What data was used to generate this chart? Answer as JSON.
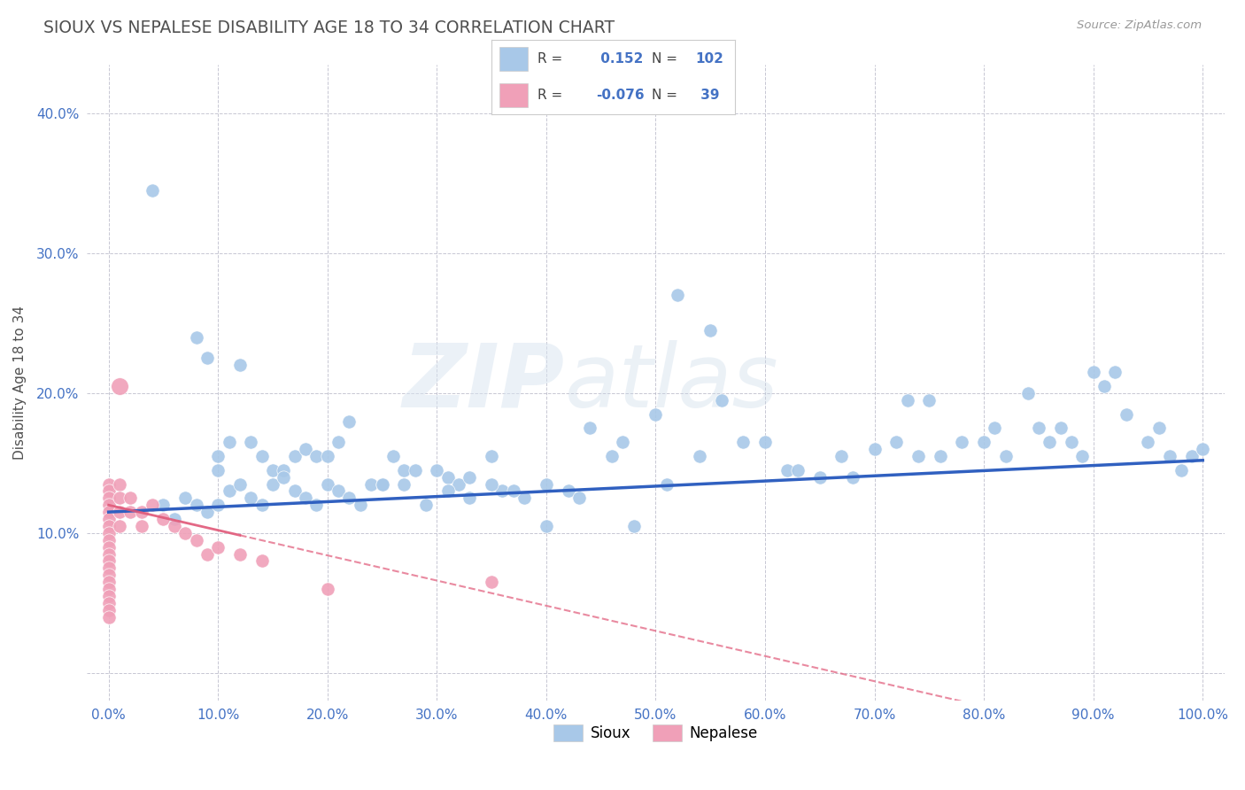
{
  "title": "SIOUX VS NEPALESE DISABILITY AGE 18 TO 34 CORRELATION CHART",
  "source": "Source: ZipAtlas.com",
  "ylabel": "Disability Age 18 to 34",
  "xlim": [
    -0.02,
    1.02
  ],
  "ylim": [
    -0.02,
    0.435
  ],
  "xticks": [
    0.0,
    0.1,
    0.2,
    0.3,
    0.4,
    0.5,
    0.6,
    0.7,
    0.8,
    0.9,
    1.0
  ],
  "xticklabels": [
    "0.0%",
    "10.0%",
    "20.0%",
    "30.0%",
    "40.0%",
    "50.0%",
    "60.0%",
    "70.0%",
    "80.0%",
    "90.0%",
    "100.0%"
  ],
  "yticks": [
    0.0,
    0.1,
    0.2,
    0.3,
    0.4
  ],
  "yticklabels": [
    "",
    "10.0%",
    "20.0%",
    "30.0%",
    "40.0%"
  ],
  "sioux_color": "#a8c8e8",
  "nepalese_color": "#f0a0b8",
  "trend_sioux_color": "#3060c0",
  "trend_nepalese_color": "#e05878",
  "R_sioux": 0.152,
  "N_sioux": 102,
  "R_nepalese": -0.076,
  "N_nepalese": 39,
  "sioux_x": [
    0.04,
    0.08,
    0.09,
    0.1,
    0.1,
    0.11,
    0.12,
    0.13,
    0.14,
    0.15,
    0.16,
    0.17,
    0.18,
    0.19,
    0.2,
    0.21,
    0.22,
    0.24,
    0.25,
    0.26,
    0.27,
    0.28,
    0.3,
    0.31,
    0.32,
    0.33,
    0.35,
    0.36,
    0.38,
    0.4,
    0.42,
    0.44,
    0.46,
    0.48,
    0.5,
    0.51,
    0.52,
    0.54,
    0.55,
    0.56,
    0.58,
    0.6,
    0.62,
    0.63,
    0.65,
    0.67,
    0.68,
    0.7,
    0.72,
    0.73,
    0.74,
    0.75,
    0.76,
    0.78,
    0.8,
    0.81,
    0.82,
    0.84,
    0.85,
    0.86,
    0.87,
    0.88,
    0.89,
    0.9,
    0.91,
    0.92,
    0.93,
    0.95,
    0.96,
    0.97,
    0.98,
    0.99,
    1.0,
    0.05,
    0.06,
    0.07,
    0.08,
    0.09,
    0.1,
    0.11,
    0.12,
    0.13,
    0.14,
    0.15,
    0.16,
    0.17,
    0.18,
    0.19,
    0.2,
    0.21,
    0.22,
    0.23,
    0.25,
    0.27,
    0.29,
    0.31,
    0.33,
    0.35,
    0.37,
    0.4,
    0.43,
    0.47
  ],
  "sioux_y": [
    0.345,
    0.24,
    0.225,
    0.155,
    0.145,
    0.165,
    0.22,
    0.165,
    0.155,
    0.145,
    0.145,
    0.155,
    0.16,
    0.155,
    0.155,
    0.165,
    0.18,
    0.135,
    0.135,
    0.155,
    0.145,
    0.145,
    0.145,
    0.14,
    0.135,
    0.14,
    0.155,
    0.13,
    0.125,
    0.105,
    0.13,
    0.175,
    0.155,
    0.105,
    0.185,
    0.135,
    0.27,
    0.155,
    0.245,
    0.195,
    0.165,
    0.165,
    0.145,
    0.145,
    0.14,
    0.155,
    0.14,
    0.16,
    0.165,
    0.195,
    0.155,
    0.195,
    0.155,
    0.165,
    0.165,
    0.175,
    0.155,
    0.2,
    0.175,
    0.165,
    0.175,
    0.165,
    0.155,
    0.215,
    0.205,
    0.215,
    0.185,
    0.165,
    0.175,
    0.155,
    0.145,
    0.155,
    0.16,
    0.12,
    0.11,
    0.125,
    0.12,
    0.115,
    0.12,
    0.13,
    0.135,
    0.125,
    0.12,
    0.135,
    0.14,
    0.13,
    0.125,
    0.12,
    0.135,
    0.13,
    0.125,
    0.12,
    0.135,
    0.135,
    0.12,
    0.13,
    0.125,
    0.135,
    0.13,
    0.135,
    0.125,
    0.165
  ],
  "nepalese_x": [
    0.0,
    0.0,
    0.0,
    0.0,
    0.0,
    0.0,
    0.0,
    0.0,
    0.0,
    0.0,
    0.0,
    0.0,
    0.0,
    0.0,
    0.0,
    0.0,
    0.0,
    0.0,
    0.0,
    0.0,
    0.01,
    0.01,
    0.01,
    0.01,
    0.02,
    0.02,
    0.03,
    0.03,
    0.04,
    0.05,
    0.06,
    0.07,
    0.08,
    0.09,
    0.1,
    0.12,
    0.14,
    0.2,
    0.35
  ],
  "nepalese_y": [
    0.135,
    0.13,
    0.125,
    0.12,
    0.115,
    0.11,
    0.105,
    0.1,
    0.095,
    0.09,
    0.085,
    0.08,
    0.075,
    0.07,
    0.065,
    0.06,
    0.055,
    0.05,
    0.045,
    0.04,
    0.135,
    0.125,
    0.115,
    0.105,
    0.125,
    0.115,
    0.115,
    0.105,
    0.12,
    0.11,
    0.105,
    0.1,
    0.095,
    0.085,
    0.09,
    0.085,
    0.08,
    0.06,
    0.065
  ],
  "nepalese_outlier_x": [
    0.01
  ],
  "nepalese_outlier_y": [
    0.205
  ],
  "watermark_zip": "ZIP",
  "watermark_atlas": "atlas",
  "background_color": "#ffffff",
  "grid_color": "#b8b8c8",
  "title_color": "#505050",
  "axis_label_color": "#4472c4",
  "tick_color": "#4472c4"
}
